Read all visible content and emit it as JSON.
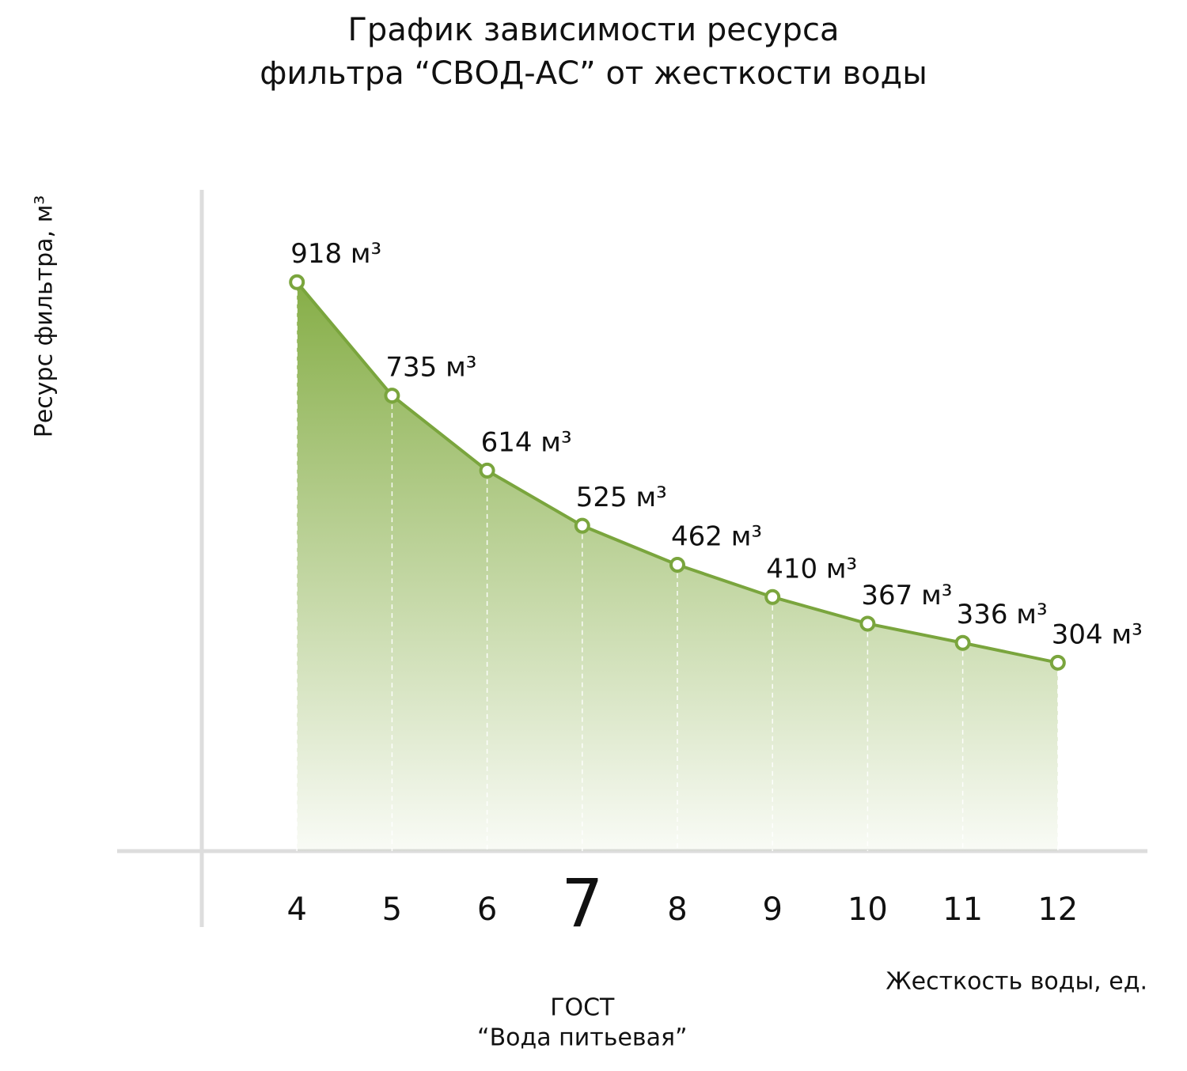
{
  "chart_data": {
    "type": "area",
    "title": [
      "График зависимости ресурса",
      "фильтра “СВОД-АС” от жесткости воды"
    ],
    "y_label": "Ресурс фильтра, м³",
    "x_label": "Жесткость воды, ед.",
    "x": [
      4,
      5,
      6,
      7,
      8,
      9,
      10,
      11,
      12
    ],
    "values": [
      918,
      735,
      614,
      525,
      462,
      410,
      367,
      336,
      304
    ],
    "value_labels": [
      "918 м³",
      "735 м³",
      "614 м³",
      "525 м³",
      "462 м³",
      "410 м³",
      "367 м³",
      "336 м³",
      "304 м³"
    ],
    "xticks": [
      4,
      5,
      6,
      7,
      8,
      9,
      10,
      11,
      12
    ],
    "xlim": [
      3,
      13
    ],
    "ylim": [
      0,
      1067
    ],
    "color": "#7aa53d",
    "annotation": {
      "x": 7,
      "lines": [
        "ГОСТ",
        "“Вода питьевая”"
      ]
    }
  }
}
